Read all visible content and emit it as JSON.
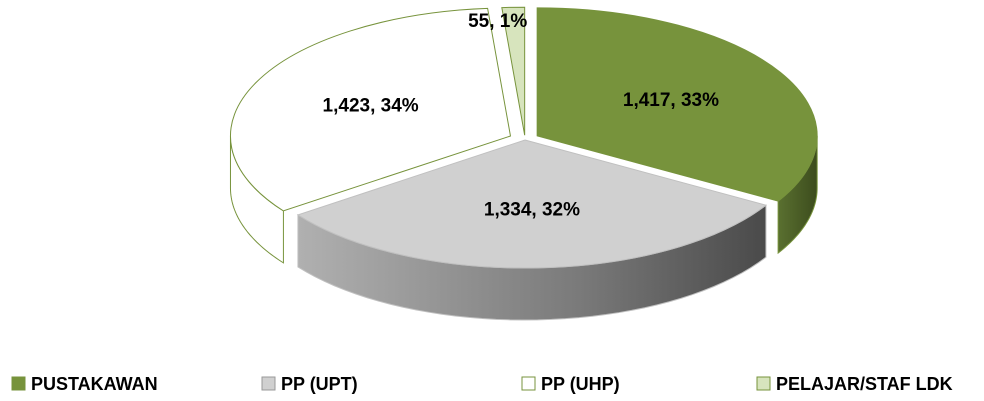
{
  "chart_data": {
    "type": "pie",
    "categories": [
      "PUSTAKAWAN",
      "PP (UPT)",
      "PP (UHP)",
      "PELAJAR/STAF LDK"
    ],
    "values": [
      1417,
      1334,
      1423,
      55
    ],
    "value_labels": [
      "1,417, 33%",
      "1,334, 32%",
      "1,423, 34%",
      "55, 1%"
    ],
    "colors": [
      "#77933c",
      "#d0d0d0",
      "#ffffff",
      "#d7e4bd"
    ],
    "legend": "bottom"
  }
}
